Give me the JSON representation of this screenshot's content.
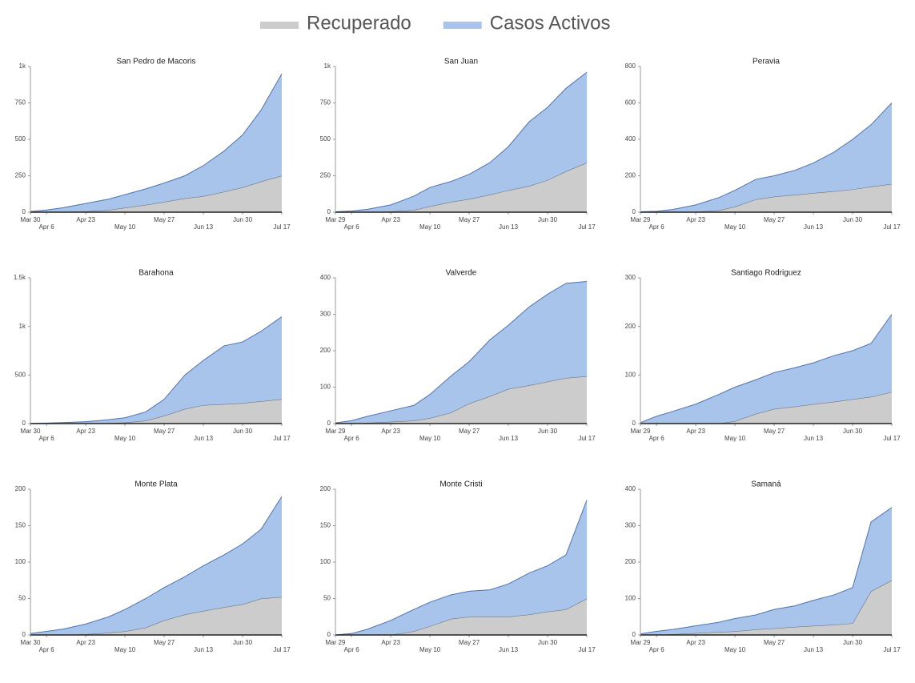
{
  "legend": "top",
  "chart_data": [
    {
      "type": "area",
      "title": "San Pedro de Macoris",
      "stacked": true,
      "x": [
        0,
        7,
        14,
        24,
        34,
        41,
        50,
        58,
        67,
        75,
        84,
        92,
        100,
        109
      ],
      "xlim": [
        0,
        109
      ],
      "xticks": [
        {
          "value": 0,
          "label": "Mar 30"
        },
        {
          "value": 7,
          "label": "Apr 6"
        },
        {
          "value": 24,
          "label": "Apr 23"
        },
        {
          "value": 41,
          "label": "May 10"
        },
        {
          "value": 58,
          "label": "May 27"
        },
        {
          "value": 75,
          "label": "Jun 13"
        },
        {
          "value": 92,
          "label": "Jun 30"
        },
        {
          "value": 109,
          "label": "Jul 17"
        }
      ],
      "ylim": [
        0,
        1000
      ],
      "yticks": [
        0,
        250,
        500,
        750,
        {
          "value": 1000,
          "label": "1k"
        }
      ],
      "series": [
        {
          "name": "Recuperado",
          "color": "#cccccc",
          "values": [
            0,
            0,
            2,
            5,
            15,
            30,
            50,
            70,
            95,
            110,
            140,
            170,
            210,
            250
          ]
        },
        {
          "name": "Casos Activos",
          "color": "#a9c4eb",
          "values": [
            5,
            15,
            28,
            55,
            75,
            90,
            110,
            130,
            155,
            210,
            280,
            360,
            490,
            700
          ]
        }
      ]
    },
    {
      "type": "area",
      "title": "San Juan",
      "stacked": true,
      "x": [
        0,
        7,
        14,
        24,
        34,
        41,
        50,
        58,
        67,
        75,
        84,
        92,
        100,
        109
      ],
      "xlim": [
        0,
        109
      ],
      "xticks": [
        {
          "value": 0,
          "label": "Mar 29"
        },
        {
          "value": 7,
          "label": "Apr 6"
        },
        {
          "value": 24,
          "label": "Apr 23"
        },
        {
          "value": 41,
          "label": "May 10"
        },
        {
          "value": 58,
          "label": "May 27"
        },
        {
          "value": 75,
          "label": "Jun 13"
        },
        {
          "value": 92,
          "label": "Jun 30"
        },
        {
          "value": 109,
          "label": "Jul 17"
        }
      ],
      "ylim": [
        0,
        1000
      ],
      "yticks": [
        0,
        250,
        500,
        750,
        {
          "value": 1000,
          "label": "1k"
        }
      ],
      "series": [
        {
          "name": "Recuperado",
          "color": "#cccccc",
          "values": [
            0,
            0,
            0,
            5,
            15,
            40,
            70,
            90,
            120,
            150,
            180,
            220,
            280,
            340
          ]
        },
        {
          "name": "Casos Activos",
          "color": "#a9c4eb",
          "values": [
            3,
            8,
            20,
            45,
            95,
            130,
            140,
            170,
            220,
            300,
            440,
            500,
            570,
            620
          ]
        }
      ]
    },
    {
      "type": "area",
      "title": "Peravia",
      "stacked": true,
      "x": [
        0,
        7,
        14,
        24,
        34,
        41,
        50,
        58,
        67,
        75,
        84,
        92,
        100,
        109
      ],
      "xlim": [
        0,
        109
      ],
      "xticks": [
        {
          "value": 0,
          "label": "Mar 29"
        },
        {
          "value": 7,
          "label": "Apr 6"
        },
        {
          "value": 24,
          "label": "Apr 23"
        },
        {
          "value": 41,
          "label": "May 10"
        },
        {
          "value": 58,
          "label": "May 27"
        },
        {
          "value": 75,
          "label": "Jun 13"
        },
        {
          "value": 92,
          "label": "Jun 30"
        },
        {
          "value": 109,
          "label": "Jul 17"
        }
      ],
      "ylim": [
        0,
        800
      ],
      "yticks": [
        0,
        200,
        400,
        600,
        800
      ],
      "series": [
        {
          "name": "Recuperado",
          "color": "#cccccc",
          "values": [
            0,
            0,
            0,
            2,
            10,
            30,
            70,
            85,
            95,
            105,
            115,
            125,
            140,
            155
          ]
        },
        {
          "name": "Casos Activos",
          "color": "#a9c4eb",
          "values": [
            2,
            5,
            15,
            38,
            70,
            90,
            110,
            115,
            135,
            165,
            215,
            275,
            340,
            445
          ]
        }
      ]
    },
    {
      "type": "area",
      "title": "Barahona",
      "stacked": true,
      "x": [
        0,
        7,
        14,
        24,
        34,
        41,
        50,
        58,
        67,
        75,
        84,
        92,
        100,
        109
      ],
      "xlim": [
        0,
        109
      ],
      "xticks": [
        {
          "value": 0,
          "label": "Mar 30"
        },
        {
          "value": 7,
          "label": "Apr 6"
        },
        {
          "value": 24,
          "label": "Apr 23"
        },
        {
          "value": 41,
          "label": "May 10"
        },
        {
          "value": 58,
          "label": "May 27"
        },
        {
          "value": 75,
          "label": "Jun 13"
        },
        {
          "value": 92,
          "label": "Jun 30"
        },
        {
          "value": 109,
          "label": "Jul 17"
        }
      ],
      "ylim": [
        0,
        1500
      ],
      "yticks": [
        0,
        500,
        {
          "value": 1000,
          "label": "1k"
        },
        {
          "value": 1500,
          "label": "1.5k"
        }
      ],
      "series": [
        {
          "name": "Recuperado",
          "color": "#cccccc",
          "values": [
            0,
            0,
            0,
            2,
            5,
            10,
            30,
            80,
            150,
            190,
            200,
            210,
            230,
            250
          ]
        },
        {
          "name": "Casos Activos",
          "color": "#a9c4eb",
          "values": [
            2,
            5,
            10,
            18,
            35,
            50,
            90,
            170,
            350,
            460,
            600,
            630,
            720,
            850
          ]
        }
      ]
    },
    {
      "type": "area",
      "title": "Valverde",
      "stacked": true,
      "x": [
        0,
        7,
        14,
        24,
        34,
        41,
        50,
        58,
        67,
        75,
        84,
        92,
        100,
        109
      ],
      "xlim": [
        0,
        109
      ],
      "xticks": [
        {
          "value": 0,
          "label": "Mar 29"
        },
        {
          "value": 7,
          "label": "Apr 6"
        },
        {
          "value": 24,
          "label": "Apr 23"
        },
        {
          "value": 41,
          "label": "May 10"
        },
        {
          "value": 58,
          "label": "May 27"
        },
        {
          "value": 75,
          "label": "Jun 13"
        },
        {
          "value": 92,
          "label": "Jun 30"
        },
        {
          "value": 109,
          "label": "Jul 17"
        }
      ],
      "ylim": [
        0,
        400
      ],
      "yticks": [
        0,
        100,
        200,
        300,
        400
      ],
      "series": [
        {
          "name": "Recuperado",
          "color": "#cccccc",
          "values": [
            0,
            0,
            2,
            5,
            8,
            15,
            30,
            55,
            75,
            95,
            105,
            115,
            125,
            130
          ]
        },
        {
          "name": "Casos Activos",
          "color": "#a9c4eb",
          "values": [
            2,
            8,
            18,
            30,
            42,
            65,
            100,
            115,
            155,
            175,
            215,
            240,
            260,
            260
          ]
        }
      ]
    },
    {
      "type": "area",
      "title": "Santiago Rodriguez",
      "stacked": true,
      "x": [
        0,
        7,
        14,
        24,
        34,
        41,
        50,
        58,
        67,
        75,
        84,
        92,
        100,
        109
      ],
      "xlim": [
        0,
        109
      ],
      "xticks": [
        {
          "value": 0,
          "label": "Mar 29"
        },
        {
          "value": 7,
          "label": "Apr 6"
        },
        {
          "value": 24,
          "label": "Apr 23"
        },
        {
          "value": 41,
          "label": "May 10"
        },
        {
          "value": 58,
          "label": "May 27"
        },
        {
          "value": 75,
          "label": "Jun 13"
        },
        {
          "value": 92,
          "label": "Jun 30"
        },
        {
          "value": 109,
          "label": "Jul 17"
        }
      ],
      "ylim": [
        0,
        300
      ],
      "yticks": [
        0,
        100,
        200,
        300
      ],
      "series": [
        {
          "name": "Recuperado",
          "color": "#cccccc",
          "values": [
            0,
            0,
            0,
            0,
            0,
            5,
            20,
            30,
            35,
            40,
            45,
            50,
            55,
            65
          ]
        },
        {
          "name": "Casos Activos",
          "color": "#a9c4eb",
          "values": [
            2,
            15,
            25,
            40,
            60,
            70,
            70,
            75,
            80,
            85,
            95,
            100,
            110,
            160
          ]
        }
      ]
    },
    {
      "type": "area",
      "title": "Monte Plata",
      "stacked": true,
      "x": [
        0,
        7,
        14,
        24,
        34,
        41,
        50,
        58,
        67,
        75,
        84,
        92,
        100,
        109
      ],
      "xlim": [
        0,
        109
      ],
      "xticks": [
        {
          "value": 0,
          "label": "Mar 30"
        },
        {
          "value": 7,
          "label": "Apr 6"
        },
        {
          "value": 24,
          "label": "Apr 23"
        },
        {
          "value": 41,
          "label": "May 10"
        },
        {
          "value": 58,
          "label": "May 27"
        },
        {
          "value": 75,
          "label": "Jun 13"
        },
        {
          "value": 92,
          "label": "Jun 30"
        },
        {
          "value": 109,
          "label": "Jul 17"
        }
      ],
      "ylim": [
        0,
        200
      ],
      "yticks": [
        0,
        50,
        100,
        150,
        200
      ],
      "series": [
        {
          "name": "Recuperado",
          "color": "#cccccc",
          "values": [
            0,
            0,
            0,
            1,
            3,
            5,
            10,
            20,
            28,
            33,
            38,
            42,
            50,
            52
          ]
        },
        {
          "name": "Casos Activos",
          "color": "#a9c4eb",
          "values": [
            2,
            5,
            8,
            14,
            22,
            30,
            40,
            45,
            52,
            62,
            72,
            83,
            95,
            138
          ]
        }
      ]
    },
    {
      "type": "area",
      "title": "Monte Cristi",
      "stacked": true,
      "x": [
        0,
        7,
        14,
        24,
        34,
        41,
        50,
        58,
        67,
        75,
        84,
        92,
        100,
        109
      ],
      "xlim": [
        0,
        109
      ],
      "xticks": [
        {
          "value": 0,
          "label": "Mar 29"
        },
        {
          "value": 7,
          "label": "Apr 6"
        },
        {
          "value": 24,
          "label": "Apr 23"
        },
        {
          "value": 41,
          "label": "May 10"
        },
        {
          "value": 58,
          "label": "May 27"
        },
        {
          "value": 75,
          "label": "Jun 13"
        },
        {
          "value": 92,
          "label": "Jun 30"
        },
        {
          "value": 109,
          "label": "Jul 17"
        }
      ],
      "ylim": [
        0,
        200
      ],
      "yticks": [
        0,
        50,
        100,
        150,
        200
      ],
      "series": [
        {
          "name": "Recuperado",
          "color": "#cccccc",
          "values": [
            0,
            0,
            0,
            0,
            5,
            12,
            22,
            25,
            25,
            25,
            28,
            32,
            35,
            50
          ]
        },
        {
          "name": "Casos Activos",
          "color": "#a9c4eb",
          "values": [
            0,
            2,
            8,
            20,
            30,
            33,
            33,
            35,
            37,
            45,
            57,
            63,
            75,
            135
          ]
        }
      ]
    },
    {
      "type": "area",
      "title": "Samaná",
      "stacked": true,
      "x": [
        0,
        7,
        14,
        24,
        34,
        41,
        50,
        58,
        67,
        75,
        84,
        92,
        100,
        109
      ],
      "xlim": [
        0,
        109
      ],
      "xticks": [
        {
          "value": 0,
          "label": "Mar 29"
        },
        {
          "value": 7,
          "label": "Apr 6"
        },
        {
          "value": 24,
          "label": "Apr 23"
        },
        {
          "value": 41,
          "label": "May 10"
        },
        {
          "value": 58,
          "label": "May 27"
        },
        {
          "value": 75,
          "label": "Jun 13"
        },
        {
          "value": 92,
          "label": "Jun 30"
        },
        {
          "value": 109,
          "label": "Jul 17"
        }
      ],
      "ylim": [
        0,
        400
      ],
      "yticks": [
        0,
        100,
        200,
        300,
        400
      ],
      "series": [
        {
          "name": "Recuperado",
          "color": "#cccccc",
          "values": [
            0,
            0,
            2,
            5,
            8,
            10,
            15,
            18,
            22,
            25,
            28,
            32,
            120,
            150
          ]
        },
        {
          "name": "Casos Activos",
          "color": "#a9c4eb",
          "values": [
            3,
            10,
            13,
            20,
            27,
            35,
            40,
            52,
            58,
            70,
            82,
            98,
            190,
            200
          ]
        }
      ]
    }
  ]
}
